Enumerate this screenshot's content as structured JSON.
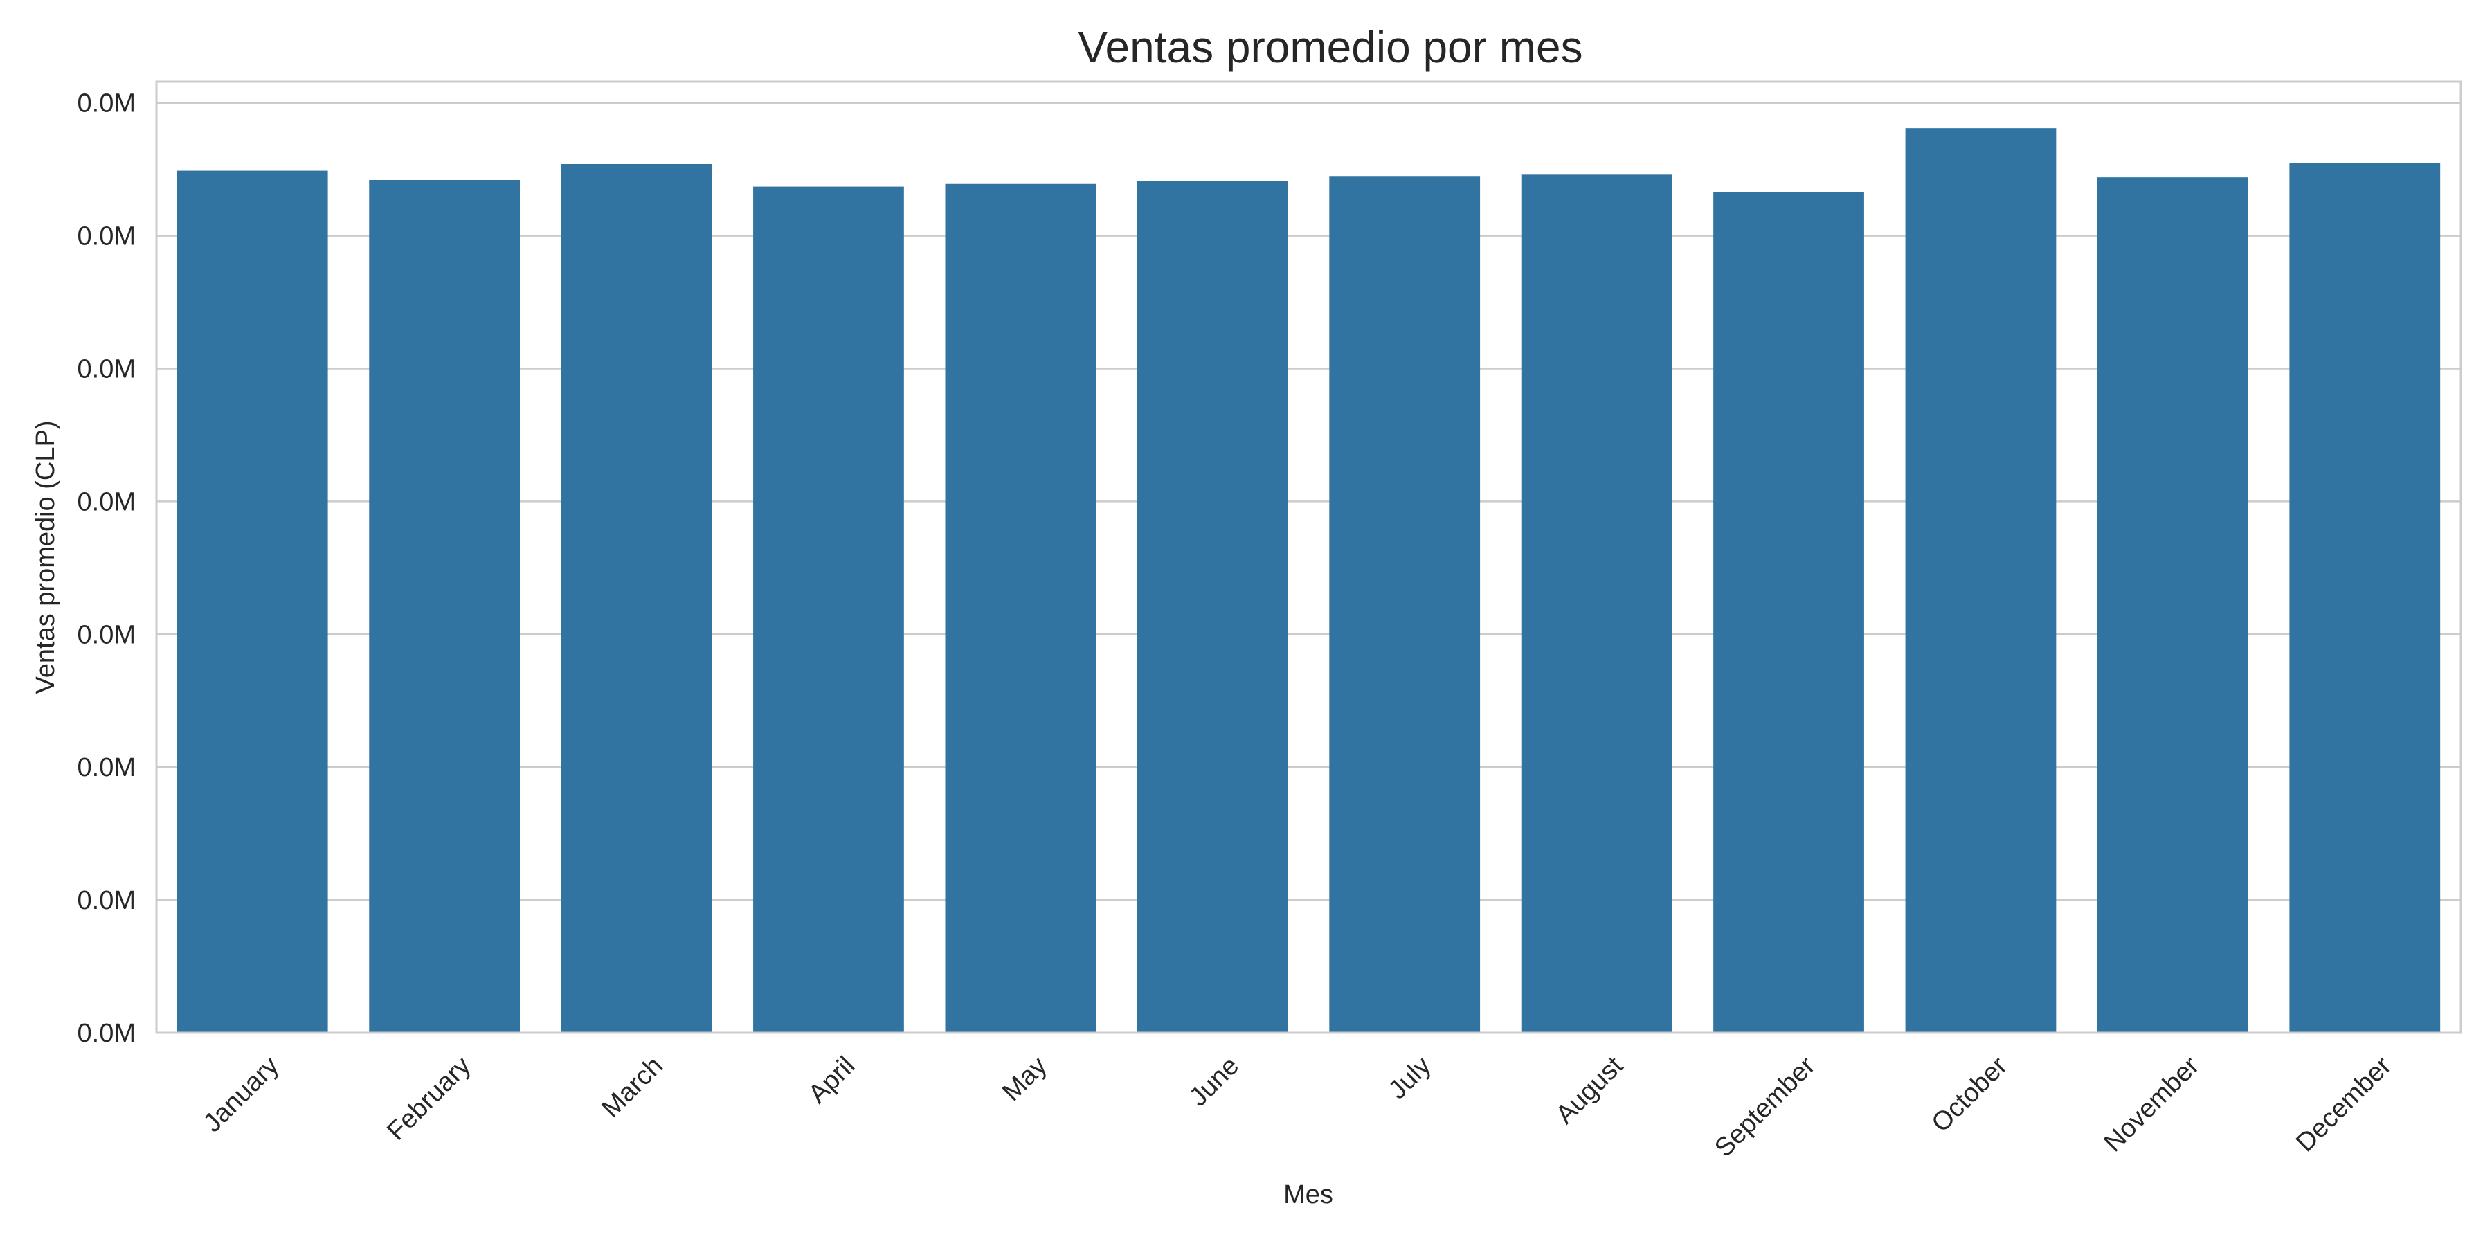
{
  "chart_data": {
    "type": "bar",
    "title": "Ventas promedio por mes",
    "xlabel": "Mes",
    "ylabel": "Ventas promedio (CLP)",
    "categories": [
      "January",
      "February",
      "March",
      "April",
      "May",
      "June",
      "July",
      "August",
      "September",
      "October",
      "November",
      "December"
    ],
    "values": [
      6.49,
      6.42,
      6.54,
      6.37,
      6.39,
      6.41,
      6.45,
      6.46,
      6.33,
      6.81,
      6.44,
      6.55
    ],
    "ylim": [
      0,
      7.16
    ],
    "yticks": [
      0,
      1,
      2,
      3,
      4,
      5,
      6,
      7
    ],
    "ytick_labels": [
      "0.0M",
      "0.0M",
      "0.0M",
      "0.0M",
      "0.0M",
      "0.0M",
      "0.0M",
      "0.0M"
    ],
    "grid": "horizontal",
    "legend": "none",
    "bar_color": "#3274a1",
    "grid_color": "#cccccc",
    "spine_color": "#cccccc"
  }
}
